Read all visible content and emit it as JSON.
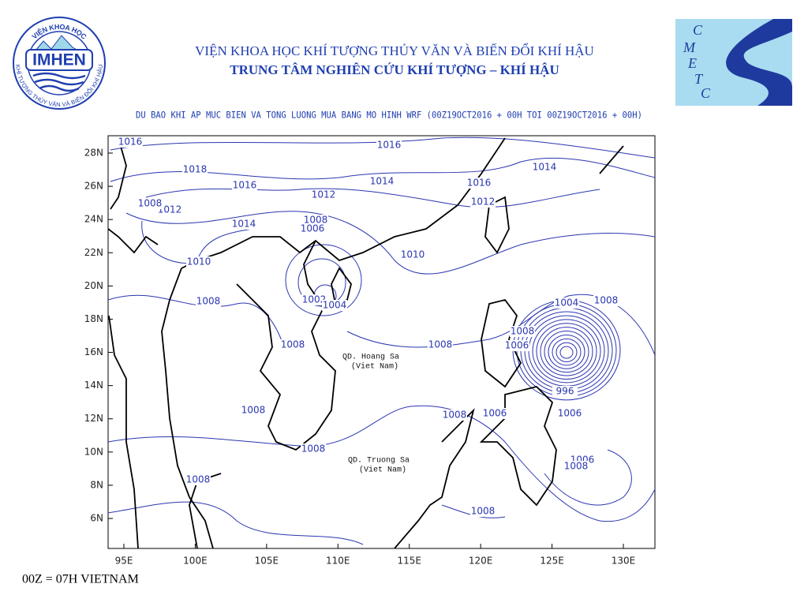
{
  "header": {
    "institute": "VIỆN KHOA HỌC KHÍ TƯỢNG THỦY VĂN VÀ BIẾN ĐỔI KHÍ HẬU",
    "center": "TRUNG TÂM NGHIÊN CỨU KHÍ TƯỢNG – KHÍ HẬU"
  },
  "logos": {
    "left": {
      "arc_top": "VIỆN KHOA HỌC",
      "name": "IMHEN",
      "arc_bottom": "KHÍ TƯỢNG THỦY VĂN VÀ BIẾN ĐỔI KHÍ HẬU"
    },
    "right": {
      "letters": [
        "C",
        "M",
        "E",
        "T",
        "C"
      ]
    }
  },
  "map": {
    "title": "DU BAO KHI AP MUC BIEN VA TONG LUONG MUA BANG MO HINH WRF (00Z19OCT2016 + 00H TOI 00Z19OCT2016 + 00H)",
    "lon_ticks": [
      {
        "value": 95,
        "label": "95E"
      },
      {
        "value": 100,
        "label": "100E"
      },
      {
        "value": 105,
        "label": "105E"
      },
      {
        "value": 110,
        "label": "110E"
      },
      {
        "value": 115,
        "label": "115E"
      },
      {
        "value": 120,
        "label": "120E"
      },
      {
        "value": 125,
        "label": "125E"
      },
      {
        "value": 130,
        "label": "130E"
      }
    ],
    "lat_ticks": [
      {
        "value": 28,
        "label": "28N"
      },
      {
        "value": 26,
        "label": "26N"
      },
      {
        "value": 24,
        "label": "24N"
      },
      {
        "value": 22,
        "label": "22N"
      },
      {
        "value": 20,
        "label": "20N"
      },
      {
        "value": 18,
        "label": "18N"
      },
      {
        "value": 16,
        "label": "16N"
      },
      {
        "value": 14,
        "label": "14N"
      },
      {
        "value": 12,
        "label": "12N"
      },
      {
        "value": 10,
        "label": "10N"
      },
      {
        "value": 8,
        "label": "8N"
      },
      {
        "value": 6,
        "label": "6N"
      }
    ],
    "isobar_labels": [
      1016,
      1016,
      1018,
      1014,
      1016,
      1016,
      1014,
      1012,
      1012,
      1012,
      1008,
      1014,
      1008,
      1006,
      1010,
      1010,
      1008,
      1002,
      1004,
      1008,
      1008,
      1004,
      1008,
      1008,
      1006,
      996,
      1008,
      1008,
      1006,
      1006,
      1008,
      1006,
      1008,
      1008,
      1008
    ],
    "places": [
      {
        "name": "QD. Hoang Sa",
        "note": "(Viet Nam)"
      },
      {
        "name": "QD. Truong Sa",
        "note": "(Viet Nam)"
      }
    ]
  },
  "footer": "00Z = 07H VIETNAM"
}
